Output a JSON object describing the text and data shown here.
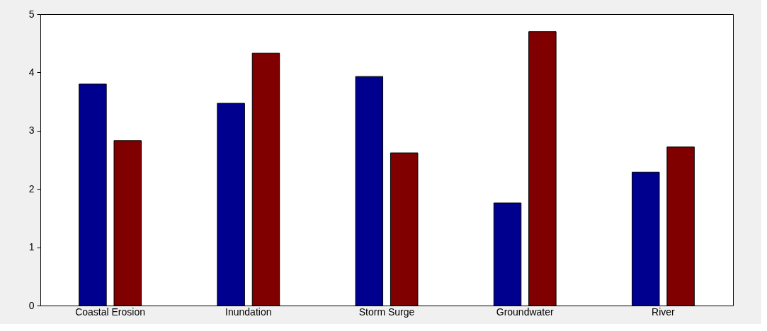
{
  "chart_data": {
    "type": "bar",
    "categories": [
      "Coastal Erosion",
      "Inundation",
      "Storm Surge",
      "Groundwater",
      "River"
    ],
    "series": [
      {
        "color": "#00008f",
        "values": [
          3.8,
          3.47,
          3.93,
          1.76,
          2.29
        ]
      },
      {
        "color": "#800000",
        "values": [
          2.83,
          4.33,
          2.62,
          4.7,
          2.72
        ]
      }
    ],
    "ylim": [
      0,
      5
    ],
    "yticks": [
      0,
      1,
      2,
      3,
      4,
      5
    ],
    "grid": false,
    "legend": false
  }
}
